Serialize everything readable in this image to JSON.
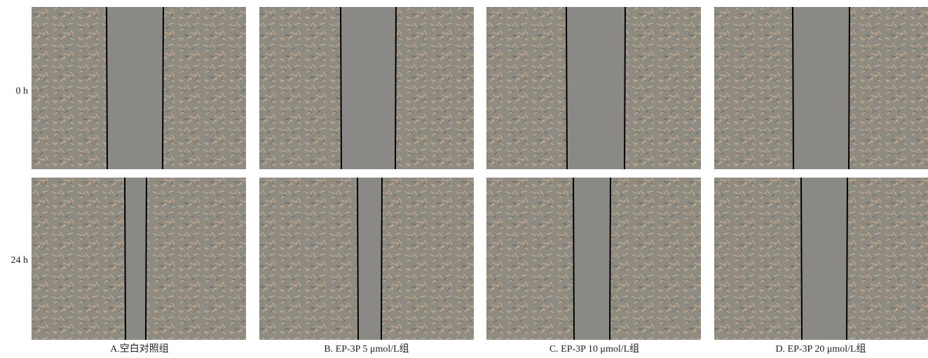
{
  "row_labels": [
    "0 h",
    "24 h"
  ],
  "column_labels": [
    "A.空白对照组",
    "B. EP-3P 5 μmol/L组",
    "C. EP-3P 10 μmol/L组",
    "D. EP-3P 20 μmol/L组"
  ]
}
